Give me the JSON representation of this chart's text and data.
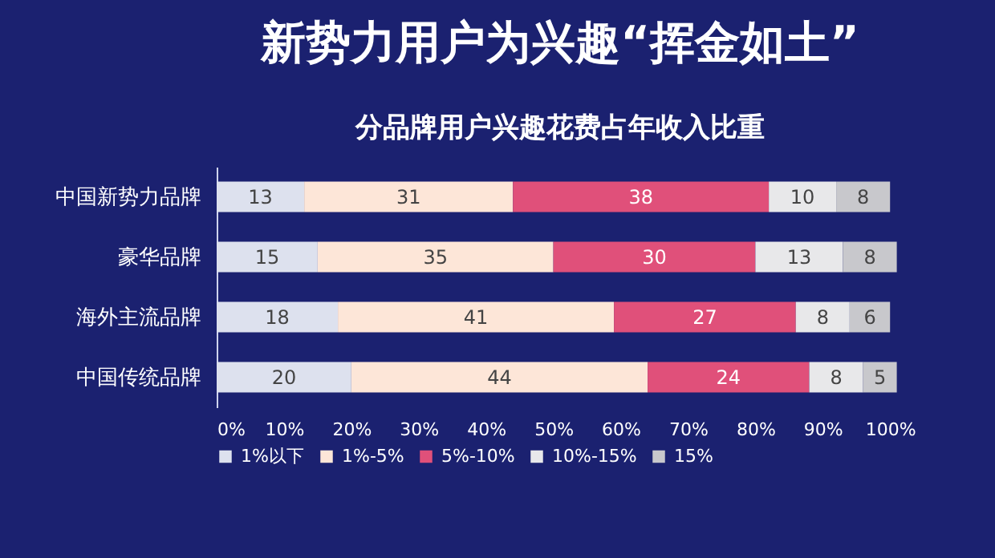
{
  "chart_data": {
    "type": "bar",
    "orientation": "horizontal",
    "stacked": true,
    "title": "新势力用户为兴趣“挥金如土”",
    "subtitle": "分品牌用户兴趣花费占年收入比重",
    "categories": [
      "中国新势力品牌",
      "豪华品牌",
      "海外主流品牌",
      "中国传统品牌"
    ],
    "series": [
      {
        "name": "1%以下",
        "color": "#dde1ee",
        "values": [
          13,
          15,
          18,
          20
        ]
      },
      {
        "name": "1%-5%",
        "color": "#fde6d8",
        "values": [
          31,
          35,
          41,
          44
        ]
      },
      {
        "name": "5%-10%",
        "color": "#e0507a",
        "values": [
          38,
          30,
          27,
          24
        ]
      },
      {
        "name": "10%-15%",
        "color": "#e8e8ea",
        "values": [
          10,
          13,
          8,
          8
        ]
      },
      {
        "name": "15%",
        "color": "#c8c8cc",
        "values": [
          8,
          8,
          6,
          5
        ]
      }
    ],
    "xlim": [
      0,
      102
    ],
    "xticks": [
      {
        "value": 0,
        "label": "0%"
      },
      {
        "value": 10,
        "label": "10%"
      },
      {
        "value": 20,
        "label": "20%"
      },
      {
        "value": 30,
        "label": "30%"
      },
      {
        "value": 40,
        "label": "40%"
      },
      {
        "value": 50,
        "label": "50%"
      },
      {
        "value": 60,
        "label": "60%"
      },
      {
        "value": 70,
        "label": "70%"
      },
      {
        "value": 80,
        "label": "80%"
      },
      {
        "value": 90,
        "label": "90%"
      },
      {
        "value": 100,
        "label": "100%"
      }
    ],
    "data_labels": true,
    "grid": false,
    "legend": "bottom"
  }
}
